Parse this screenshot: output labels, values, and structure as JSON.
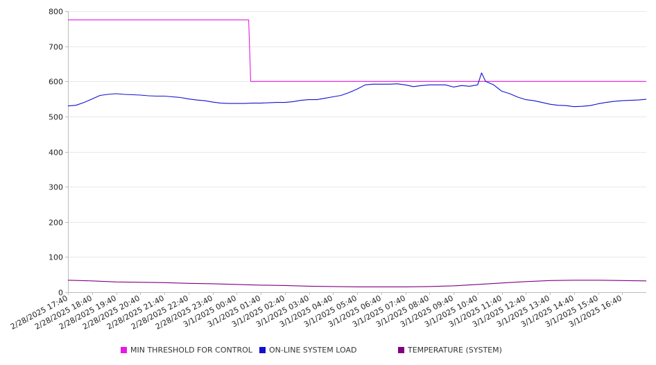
{
  "chart_data": {
    "type": "line",
    "title": "",
    "xlabel": "",
    "ylabel": "",
    "ylim": [
      0,
      800
    ],
    "y_ticks": [
      0,
      100,
      200,
      300,
      400,
      500,
      600,
      700,
      800
    ],
    "x_range": [
      "2/28/2025 17:40",
      "3/1/2025 17:40"
    ],
    "x_tick_labels": [
      "2/28/2025 17:40",
      "2/28/2025 18:40",
      "2/28/2025 19:40",
      "2/28/2025 20:40",
      "2/28/2025 21:40",
      "2/28/2025 22:40",
      "2/28/2025 23:40",
      "3/1/2025 00:40",
      "3/1/2025 01:40",
      "3/1/2025 02:40",
      "3/1/2025 03:40",
      "3/1/2025 04:40",
      "3/1/2025 05:40",
      "3/1/2025 06:40",
      "3/1/2025 07:40",
      "3/1/2025 08:40",
      "3/1/2025 09:40",
      "3/1/2025 10:40",
      "3/1/2025 11:40",
      "3/1/2025 12:40",
      "3/1/2025 13:40",
      "3/1/2025 14:40",
      "3/1/2025 15:40",
      "3/1/2025 16:40"
    ],
    "grid": true,
    "legend_position": "bottom",
    "series": [
      {
        "name": "MIN THRESHOLD FOR CONTROL",
        "color": "#e619e6",
        "x": [
          "2/28/2025 17:40",
          "3/1/2025 01:10",
          "3/1/2025 01:15",
          "3/1/2025 17:40"
        ],
        "values": [
          775,
          775,
          600,
          600
        ]
      },
      {
        "name": "ON-LINE SYSTEM LOAD",
        "color": "#1010d0",
        "x": [
          "2/28/2025 17:40",
          "2/28/2025 18:00",
          "2/28/2025 18:20",
          "2/28/2025 18:40",
          "2/28/2025 19:00",
          "2/28/2025 19:20",
          "2/28/2025 19:40",
          "2/28/2025 20:00",
          "2/28/2025 20:20",
          "2/28/2025 20:40",
          "2/28/2025 21:00",
          "2/28/2025 21:20",
          "2/28/2025 21:40",
          "2/28/2025 22:00",
          "2/28/2025 22:20",
          "2/28/2025 22:40",
          "2/28/2025 23:00",
          "2/28/2025 23:20",
          "2/28/2025 23:40",
          "3/1/2025 00:00",
          "3/1/2025 00:20",
          "3/1/2025 00:40",
          "3/1/2025 01:00",
          "3/1/2025 01:20",
          "3/1/2025 01:40",
          "3/1/2025 02:00",
          "3/1/2025 02:20",
          "3/1/2025 02:40",
          "3/1/2025 03:00",
          "3/1/2025 03:20",
          "3/1/2025 03:40",
          "3/1/2025 04:00",
          "3/1/2025 04:20",
          "3/1/2025 04:40",
          "3/1/2025 05:00",
          "3/1/2025 05:20",
          "3/1/2025 05:40",
          "3/1/2025 06:00",
          "3/1/2025 06:20",
          "3/1/2025 06:40",
          "3/1/2025 07:00",
          "3/1/2025 07:20",
          "3/1/2025 07:40",
          "3/1/2025 08:00",
          "3/1/2025 08:20",
          "3/1/2025 08:40",
          "3/1/2025 09:00",
          "3/1/2025 09:20",
          "3/1/2025 09:40",
          "3/1/2025 10:00",
          "3/1/2025 10:20",
          "3/1/2025 10:40",
          "3/1/2025 10:50",
          "3/1/2025 11:00",
          "3/1/2025 11:20",
          "3/1/2025 11:40",
          "3/1/2025 12:00",
          "3/1/2025 12:20",
          "3/1/2025 12:40",
          "3/1/2025 13:00",
          "3/1/2025 13:20",
          "3/1/2025 13:40",
          "3/1/2025 14:00",
          "3/1/2025 14:20",
          "3/1/2025 14:40",
          "3/1/2025 15:00",
          "3/1/2025 15:20",
          "3/1/2025 15:40",
          "3/1/2025 16:00",
          "3/1/2025 16:20",
          "3/1/2025 16:40",
          "3/1/2025 17:00",
          "3/1/2025 17:20",
          "3/1/2025 17:40"
        ],
        "values": [
          530,
          532,
          540,
          550,
          560,
          563,
          565,
          563,
          562,
          561,
          559,
          558,
          558,
          556,
          554,
          550,
          547,
          545,
          541,
          538,
          537,
          537,
          537,
          538,
          538,
          539,
          540,
          540,
          542,
          546,
          548,
          548,
          552,
          556,
          560,
          568,
          578,
          590,
          592,
          592,
          592,
          593,
          590,
          585,
          588,
          590,
          590,
          590,
          584,
          588,
          586,
          590,
          624,
          600,
          590,
          572,
          565,
          555,
          548,
          545,
          540,
          535,
          532,
          531,
          528,
          529,
          531,
          536,
          540,
          543,
          545,
          546,
          547,
          549
        ]
      },
      {
        "name": "TEMPERATURE (SYSTEM)",
        "color": "#800080",
        "x": [
          "2/28/2025 17:40",
          "2/28/2025 18:40",
          "2/28/2025 19:40",
          "2/28/2025 20:40",
          "2/28/2025 21:40",
          "2/28/2025 22:40",
          "2/28/2025 23:40",
          "3/1/2025 00:40",
          "3/1/2025 01:40",
          "3/1/2025 02:40",
          "3/1/2025 03:40",
          "3/1/2025 04:40",
          "3/1/2025 05:40",
          "3/1/2025 06:40",
          "3/1/2025 07:40",
          "3/1/2025 08:40",
          "3/1/2025 09:40",
          "3/1/2025 10:40",
          "3/1/2025 11:40",
          "3/1/2025 12:40",
          "3/1/2025 13:40",
          "3/1/2025 14:40",
          "3/1/2025 15:40",
          "3/1/2025 16:40",
          "3/1/2025 17:40"
        ],
        "values": [
          34,
          32,
          29,
          28,
          27,
          25,
          24,
          22,
          20,
          19,
          17,
          16,
          15,
          15,
          15,
          16,
          18,
          22,
          26,
          30,
          33,
          34,
          34,
          33,
          32
        ]
      }
    ]
  }
}
